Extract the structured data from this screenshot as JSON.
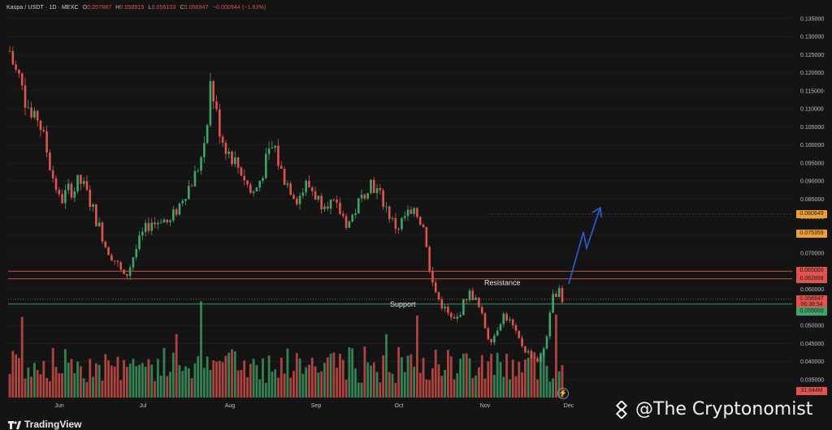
{
  "header": {
    "symbol": "Kaspa / USDT · 1D · MEXC",
    "o_label": "O",
    "o": "0.057887",
    "h_label": "H",
    "h": "0.058915",
    "l_label": "L",
    "l": "0.056103",
    "c_label": "C",
    "c": "0.056947",
    "change": "−0.000944 (−1.63%)"
  },
  "price_tags": [
    {
      "label": "0.080849",
      "price": 0.080849,
      "bg": "#f0a030"
    },
    {
      "label": "0.075359",
      "price": 0.075359,
      "bg": "#f0a030"
    },
    {
      "label": "0.065000",
      "price": 0.065,
      "bg": "#e0544d"
    },
    {
      "label": "0.062898",
      "price": 0.0629,
      "bg": "#e0544d"
    },
    {
      "label": "0.056947",
      "price": 0.0573,
      "bg": "#e0544d"
    },
    {
      "label": "06:38:54",
      "price": 0.0557,
      "bg": "#e0544d"
    },
    {
      "label": "0.055000",
      "price": 0.0539,
      "bg": "#3fa66a"
    },
    {
      "label": "31.644M",
      "price": 0.0318,
      "bg": "#e0544d"
    }
  ],
  "annotations": {
    "resistance": "Resistance",
    "support": "Support"
  },
  "watermark": {
    "text": "@The Cryptonomist"
  },
  "brand": {
    "text": "TradingView"
  },
  "colors": {
    "up": "#3fa66a",
    "down": "#e0544d",
    "resistance": "#e0544d",
    "support": "#3fa66a",
    "arrow": "#2f5fd6"
  },
  "chart_data": {
    "type": "candlestick",
    "ylim": [
      0.03,
      0.137
    ],
    "y_ticks": [
      "0.135000",
      "0.130000",
      "0.125000",
      "0.120000",
      "0.115000",
      "0.110000",
      "0.105000",
      "0.100000",
      "0.095000",
      "0.090000",
      "0.085000",
      "0.080000",
      "0.075000",
      "0.070000",
      "0.065000",
      "0.060000",
      "0.055000",
      "0.050000",
      "0.045000",
      "0.040000",
      "0.035000"
    ],
    "x_ticks": [
      "Jun",
      "Jul",
      "Aug",
      "Sep",
      "Oct",
      "Nov",
      "Dec"
    ],
    "resistance": [
      0.065,
      0.0629
    ],
    "support": 0.055,
    "close_path": [
      0.126,
      0.121,
      0.119,
      0.114,
      0.111,
      0.106,
      0.108,
      0.104,
      0.099,
      0.093,
      0.089,
      0.084,
      0.086,
      0.088,
      0.087,
      0.09,
      0.089,
      0.086,
      0.083,
      0.079,
      0.076,
      0.072,
      0.07,
      0.068,
      0.066,
      0.063,
      0.065,
      0.069,
      0.072,
      0.075,
      0.077,
      0.079,
      0.078,
      0.08,
      0.079,
      0.078,
      0.081,
      0.083,
      0.086,
      0.088,
      0.09,
      0.093,
      0.097,
      0.104,
      0.118,
      0.11,
      0.104,
      0.1,
      0.098,
      0.096,
      0.094,
      0.092,
      0.089,
      0.086,
      0.088,
      0.091,
      0.095,
      0.098,
      0.1,
      0.094,
      0.091,
      0.089,
      0.087,
      0.085,
      0.087,
      0.089,
      0.088,
      0.086,
      0.084,
      0.085,
      0.084,
      0.083,
      0.082,
      0.08,
      0.078,
      0.08,
      0.083,
      0.085,
      0.088,
      0.09,
      0.088,
      0.086,
      0.084,
      0.081,
      0.078,
      0.077,
      0.079,
      0.081,
      0.08,
      0.081,
      0.079,
      0.076,
      0.064,
      0.06,
      0.057,
      0.055,
      0.053,
      0.051,
      0.052,
      0.055,
      0.058,
      0.059,
      0.057,
      0.054,
      0.05,
      0.046,
      0.047,
      0.05,
      0.053,
      0.052,
      0.05,
      0.047,
      0.045,
      0.043,
      0.042,
      0.041,
      0.04,
      0.044,
      0.05,
      0.058,
      0.06,
      0.057
    ]
  }
}
